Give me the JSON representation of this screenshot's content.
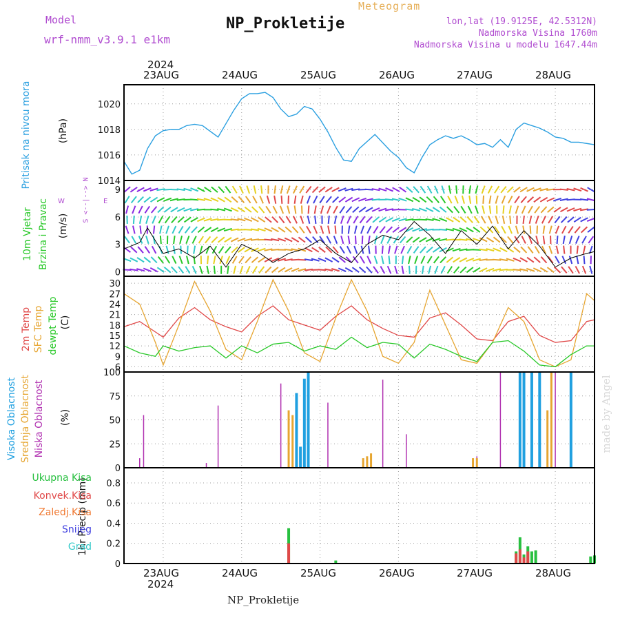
{
  "header": {
    "model_label": "Model",
    "model_name": "wrf-nmm_v3.9.1 e1km",
    "title": "NP_Prokletije",
    "meteogram_label": "Meteogram",
    "lonlat": "lon,lat (19.9125E, 42.5312N)",
    "altitude": "Nadmorska Visina 1760m",
    "model_altitude": "Nadmorska Visina u modelu 1647.44m"
  },
  "time_axis": {
    "year": "2024",
    "days": [
      "23AUG",
      "24AUG",
      "25AUG",
      "26AUG",
      "27AUG",
      "28AUG"
    ]
  },
  "footer": {
    "station": "NP_Prokletije",
    "made_by": "made by Angel"
  },
  "colors": {
    "pressure": "#2a9fe0",
    "temp2m": "#e04848",
    "sfc_temp": "#e6a530",
    "dewpt": "#28c828",
    "cloud_high": "#20a0e0",
    "cloud_mid": "#e6a530",
    "cloud_low": "#b030b0",
    "precip_total": "#28c040",
    "precip_conv": "#e04848",
    "precip_frozen": "#f07830",
    "snow": "#4040e0",
    "hail": "#30c8c8",
    "wind_title": "#28c828",
    "wind_compass": "#b04cd0"
  },
  "panels": {
    "pressure": {
      "label": "Pritisak na nivou mora",
      "unit": "(hPa)",
      "yticks": [
        "1020",
        "1018",
        "1016",
        "1014"
      ]
    },
    "wind": {
      "label1": "10m Vjetar",
      "label2": "Brzina i Pravac",
      "unit": "(m/s)",
      "compass_ns": "S <--|--> N",
      "compass_w": "W",
      "compass_e": "E",
      "yticks": [
        "9",
        "6",
        "3",
        "0"
      ]
    },
    "temp": {
      "label1": "2m Temp",
      "label2": "SFC Temp",
      "label3": "dewpt Temp",
      "unit": "(C)",
      "yticks": [
        "30",
        "27",
        "24",
        "21",
        "18",
        "15",
        "12",
        "9",
        "6"
      ]
    },
    "cloud": {
      "label1": "Visoka Oblacnost",
      "label2": "Srednja Oblacnost",
      "label3": "Niska Oblacnost",
      "unit": "(%)",
      "yticks": [
        "100",
        "75",
        "50",
        "25",
        "0"
      ]
    },
    "precip": {
      "unit": "1hr Precip (mm)",
      "yticks": [
        "0.8",
        "0.6",
        "0.4",
        "0.2",
        "0"
      ],
      "legend": [
        "Ukupna Kisa",
        "Konvek.Kisa",
        "Zaledj.Kisa",
        "Snijeg",
        "Grad"
      ]
    }
  },
  "chart_data": [
    {
      "type": "line",
      "name": "pressure",
      "x_unit": "days since 2024-08-22T12:00",
      "ylim": [
        1014,
        1021.5
      ],
      "x": [
        0,
        0.1,
        0.2,
        0.3,
        0.4,
        0.5,
        0.6,
        0.7,
        0.8,
        0.9,
        1.0,
        1.2,
        1.4,
        1.5,
        1.6,
        1.7,
        1.8,
        1.9,
        2.0,
        2.1,
        2.2,
        2.3,
        2.4,
        2.5,
        2.6,
        2.7,
        2.8,
        2.9,
        3.0,
        3.2,
        3.4,
        3.5,
        3.6,
        3.7,
        3.8,
        3.9,
        4.0,
        4.1,
        4.2,
        4.3,
        4.4,
        4.5,
        4.6,
        4.7,
        4.8,
        4.9,
        5.0,
        5.1,
        5.2,
        5.3,
        5.4,
        5.5,
        5.6,
        5.7,
        5.8,
        5.9,
        6.0
      ],
      "values": [
        1015.5,
        1014.5,
        1014.8,
        1016.5,
        1017.5,
        1017.9,
        1018.0,
        1018.0,
        1018.3,
        1018.4,
        1018.3,
        1017.4,
        1019.5,
        1020.4,
        1020.8,
        1020.8,
        1020.9,
        1020.5,
        1019.6,
        1019.0,
        1019.2,
        1019.8,
        1019.6,
        1018.8,
        1017.8,
        1016.6,
        1015.6,
        1015.5,
        1016.5,
        1017.6,
        1016.3,
        1015.8,
        1015.0,
        1014.6,
        1015.8,
        1016.8,
        1017.2,
        1017.5,
        1017.3,
        1017.5,
        1017.2,
        1016.8,
        1016.9,
        1016.6,
        1017.2,
        1016.6,
        1018.0,
        1018.5,
        1018.3,
        1018.1,
        1017.8,
        1017.4,
        1017.3,
        1017.0,
        1017.0,
        1016.9,
        1016.8
      ]
    },
    {
      "type": "line",
      "name": "wind_speed",
      "ylim": [
        -0.5,
        10
      ],
      "x": [
        0,
        0.2,
        0.3,
        0.5,
        0.7,
        0.9,
        1.1,
        1.3,
        1.5,
        1.7,
        1.9,
        2.1,
        2.3,
        2.5,
        2.7,
        2.9,
        3.1,
        3.3,
        3.5,
        3.7,
        3.9,
        4.1,
        4.3,
        4.5,
        4.7,
        4.9,
        5.1,
        5.3,
        5.5,
        5.7,
        5.9,
        6.0
      ],
      "values": [
        2.5,
        3.2,
        4.8,
        2.0,
        2.5,
        1.5,
        2.8,
        0.5,
        3.0,
        2.2,
        1.0,
        2.0,
        2.5,
        3.5,
        2.0,
        1.0,
        3.0,
        4.0,
        3.5,
        5.5,
        4.0,
        2.0,
        4.5,
        3.0,
        5.0,
        2.5,
        4.5,
        2.8,
        0.5,
        1.5,
        2.0,
        2.2
      ]
    },
    {
      "type": "line",
      "name": "temperature",
      "ylim": [
        4.5,
        32
      ],
      "x": [
        0,
        0.2,
        0.4,
        0.5,
        0.7,
        0.9,
        1.1,
        1.3,
        1.5,
        1.7,
        1.9,
        2.1,
        2.3,
        2.5,
        2.7,
        2.9,
        3.1,
        3.3,
        3.5,
        3.7,
        3.9,
        4.1,
        4.3,
        4.5,
        4.7,
        4.9,
        5.1,
        5.3,
        5.5,
        5.7,
        5.9,
        6.0
      ],
      "series": [
        {
          "key": "temp2m",
          "values": [
            17.5,
            19.0,
            16.0,
            14.5,
            20.0,
            23.0,
            19.5,
            17.5,
            16.0,
            20.5,
            23.5,
            19.5,
            18.0,
            16.5,
            20.5,
            23.5,
            19.5,
            17.0,
            15.0,
            14.5,
            20.0,
            21.5,
            18.0,
            14.0,
            13.5,
            19.0,
            20.5,
            15.0,
            13.0,
            13.5,
            19.0,
            19.5
          ]
        },
        {
          "key": "sfc_temp",
          "values": [
            27.0,
            24.0,
            13.0,
            6.5,
            18.0,
            30.5,
            22.0,
            11.0,
            8.0,
            19.0,
            31.0,
            22.0,
            10.0,
            7.5,
            20.0,
            31.0,
            22.0,
            9.0,
            7.0,
            13.0,
            28.0,
            18.0,
            8.0,
            7.0,
            13.0,
            23.0,
            19.0,
            8.0,
            6.0,
            8.0,
            27.0,
            25.0
          ]
        },
        {
          "key": "dewpt",
          "values": [
            12.0,
            10.0,
            9.0,
            12.0,
            10.5,
            11.5,
            12.0,
            8.5,
            12.0,
            10.0,
            12.5,
            13.0,
            10.5,
            12.0,
            11.0,
            14.5,
            11.5,
            13.0,
            12.5,
            8.5,
            12.5,
            11.0,
            9.0,
            7.5,
            13.0,
            13.5,
            10.5,
            6.5,
            6.0,
            9.5,
            12.0,
            12.0
          ]
        }
      ]
    },
    {
      "type": "bar",
      "name": "cloud_cover",
      "ylim": [
        0,
        100
      ],
      "series": [
        {
          "key": "cloud_low",
          "x": [
            0.2,
            0.25,
            1.05,
            1.2,
            2.0,
            2.6,
            3.3,
            3.6,
            4.5,
            4.8,
            5.5,
            6.0
          ],
          "values": [
            10,
            55,
            5,
            65,
            88,
            68,
            92,
            35,
            12,
            100,
            100,
            62
          ]
        },
        {
          "key": "cloud_mid",
          "x": [
            2.1,
            2.15,
            3.05,
            3.1,
            3.15,
            4.45,
            4.5,
            5.1,
            5.3,
            5.4,
            5.45
          ],
          "values": [
            60,
            55,
            10,
            12,
            15,
            10,
            10,
            100,
            100,
            60,
            100
          ]
        },
        {
          "key": "cloud_high",
          "x": [
            2.2,
            2.25,
            2.3,
            2.35,
            5.05,
            5.1,
            5.2,
            5.3,
            5.7
          ],
          "values": [
            78,
            22,
            93,
            100,
            100,
            100,
            100,
            100,
            100
          ]
        }
      ]
    },
    {
      "type": "bar",
      "name": "precipitation",
      "ylim": [
        0,
        0.95
      ],
      "series": [
        {
          "key": "precip_total",
          "x": [
            2.1,
            2.7,
            5.0,
            5.05,
            5.1,
            5.15,
            5.2,
            5.25,
            5.3,
            5.95,
            6.0
          ],
          "values": [
            0.35,
            0.03,
            0.12,
            0.26,
            0.09,
            0.17,
            0.12,
            0.13,
            0.0,
            0.07,
            0.08
          ]
        },
        {
          "key": "precip_conv",
          "x": [
            2.1,
            5.0,
            5.05,
            5.1,
            5.15
          ],
          "values": [
            0.2,
            0.1,
            0.14,
            0.06,
            0.12
          ]
        }
      ]
    }
  ]
}
